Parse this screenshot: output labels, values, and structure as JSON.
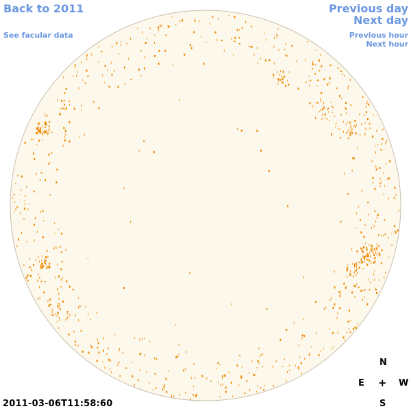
{
  "nav": {
    "back_label": "Back to 2011",
    "facular_label": "See facular data",
    "prev_day_label": "Previous day",
    "next_day_label": "Next day",
    "prev_hour_label": "Previous hour",
    "next_hour_label": "Next hour"
  },
  "compass": {
    "north": "N",
    "east": "E",
    "center": "+",
    "west": "W",
    "south": "S"
  },
  "timestamp": "2011-03-06T11:58:60",
  "colors": {
    "link": "#6b98e0",
    "disk_fill": "#fdf8ec",
    "disk_edge": "#c9bfae",
    "facula": "#ee8800"
  }
}
